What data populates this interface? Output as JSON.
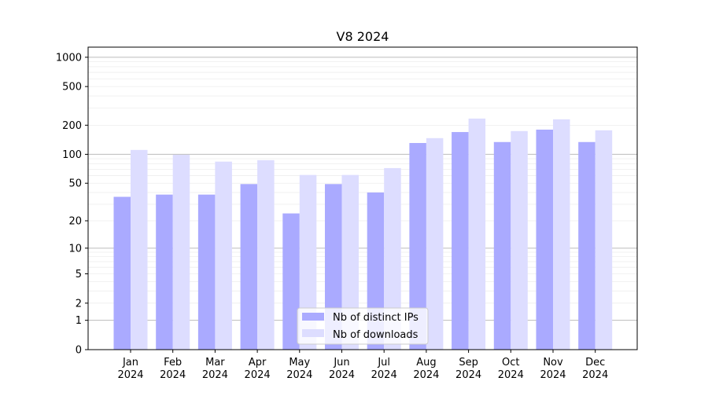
{
  "chart_data": {
    "type": "bar",
    "title": "V8 2024",
    "xlabel": "",
    "ylabel": "",
    "yscale": "log10(1+y)",
    "ylim": [
      0,
      1270
    ],
    "yticks": [
      0,
      1,
      2,
      5,
      10,
      20,
      50,
      100,
      200,
      500,
      1000
    ],
    "grid": true,
    "legend_position": "bottom-center",
    "categories": [
      "Jan\n2024",
      "Feb\n2024",
      "Mar\n2024",
      "Apr\n2024",
      "May\n2024",
      "Jun\n2024",
      "Jul\n2024",
      "Aug\n2024",
      "Sep\n2024",
      "Oct\n2024",
      "Nov\n2024",
      "Dec\n2024"
    ],
    "series": [
      {
        "name": "Nb of distinct IPs",
        "color": "#aaaaff",
        "values": [
          36,
          38,
          38,
          49,
          24,
          49,
          40,
          131,
          170,
          134,
          180,
          134
        ]
      },
      {
        "name": "Nb of downloads",
        "color": "#ddddff",
        "values": [
          111,
          99,
          84,
          87,
          61,
          61,
          72,
          147,
          234,
          174,
          230,
          177
        ]
      }
    ]
  }
}
